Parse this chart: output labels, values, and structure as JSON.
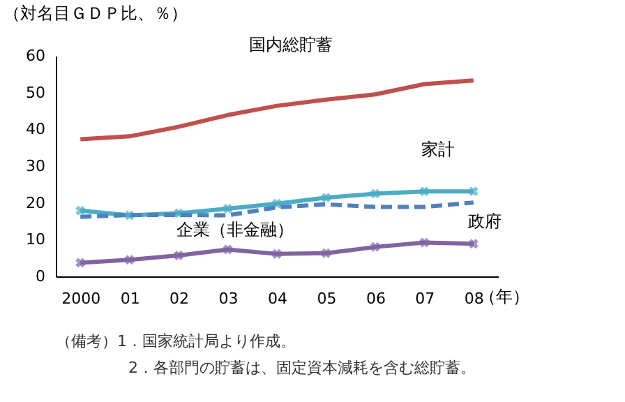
{
  "chart_data": {
    "type": "line",
    "ylabel": "（対名目ＧＤＰ比、％）",
    "xlabel": "（年）",
    "categories": [
      "2000",
      "01",
      "02",
      "03",
      "04",
      "05",
      "06",
      "07",
      "08"
    ],
    "series": [
      {
        "name": "国内総貯蓄",
        "color": "#c0504d",
        "marker": "none",
        "line_style": "solid",
        "values": [
          37.3,
          38.1,
          40.7,
          43.9,
          46.4,
          48.1,
          49.5,
          52.3,
          53.3
        ]
      },
      {
        "name": "家計",
        "color": "#4bacc6",
        "marker": "cross",
        "line_style": "solid",
        "values": [
          17.9,
          16.6,
          17.2,
          18.4,
          19.8,
          21.4,
          22.5,
          23.1,
          23.1
        ]
      },
      {
        "name": "企業（非金融）",
        "color": "#4f81bd",
        "marker": "none",
        "line_style": "dashed",
        "values": [
          16.2,
          16.7,
          16.7,
          16.6,
          18.8,
          19.6,
          18.9,
          18.9,
          20.1
        ]
      },
      {
        "name": "政府",
        "color": "#8064a2",
        "marker": "cross",
        "line_style": "solid",
        "values": [
          3.7,
          4.5,
          5.7,
          7.3,
          6.1,
          6.3,
          8.0,
          9.2,
          8.9
        ]
      }
    ],
    "ylim": [
      0,
      60
    ],
    "yticks": [
      0,
      10,
      20,
      30,
      40,
      50,
      60
    ],
    "grid": false,
    "annotations": [
      "（備考）1．国家統計局より作成。",
      "2．各部門の貯蓄は、固定資本減耗を含む総貯蓄。"
    ]
  }
}
